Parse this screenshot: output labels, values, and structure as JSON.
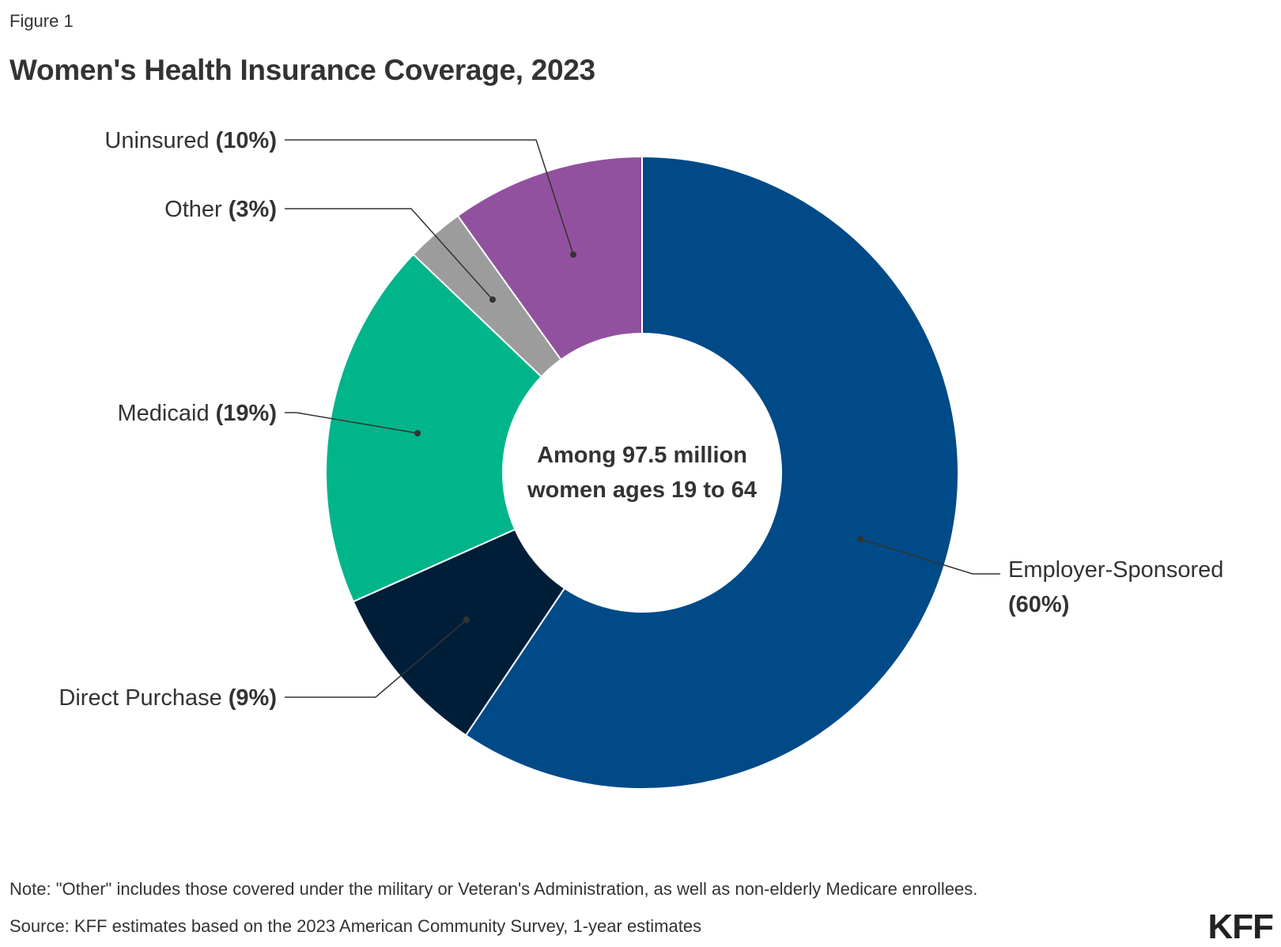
{
  "figure_label": "Figure 1",
  "note": "Note: \"Other\" includes those covered under the military or Veteran's Administration, as well as non-elderly Medicare enrollees.",
  "source": "Source: KFF estimates based on the 2023 American Community Survey, 1-year estimates",
  "logo": "KFF",
  "chart_data": {
    "type": "pie",
    "title": "Women's Health Insurance Coverage, 2023",
    "center_label": [
      "Among 97.5 million",
      "women ages 19 to 64"
    ],
    "slices": [
      {
        "name": "Employer-Sponsored",
        "pct_label": "(60%)",
        "value": 60,
        "color": "#004a88"
      },
      {
        "name": "Direct Purchase",
        "pct_label": "(9%)",
        "value": 9,
        "color": "#011e39"
      },
      {
        "name": "Medicaid",
        "pct_label": "(19%)",
        "value": 19,
        "color": "#00b589"
      },
      {
        "name": "Other",
        "pct_label": "(3%)",
        "value": 3,
        "color": "#9c9c9c"
      },
      {
        "name": "Uninsured",
        "pct_label": "(10%)",
        "value": 10,
        "color": "#92519e"
      }
    ]
  }
}
